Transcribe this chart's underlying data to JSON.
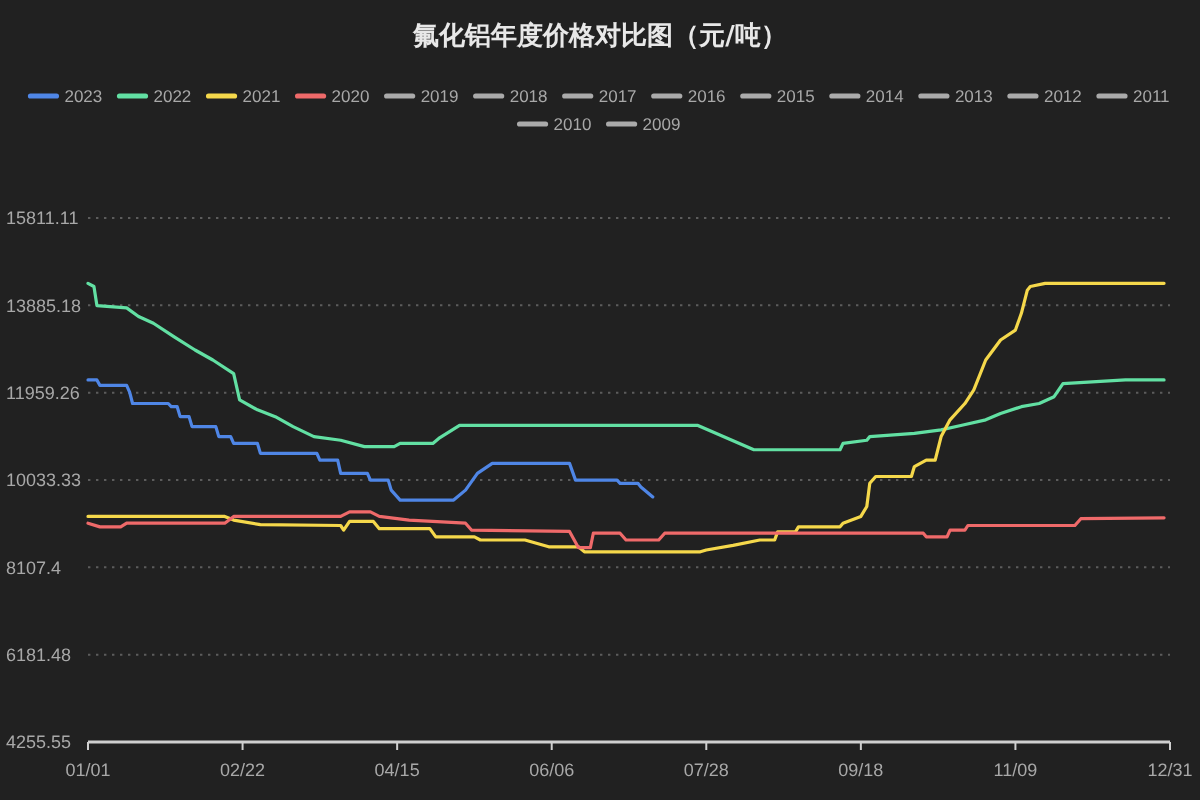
{
  "chart_data": {
    "type": "line",
    "title": "氟化铝年度价格对比图（元/吨）",
    "xlim": [
      "--01-01",
      "--12-31"
    ],
    "xticks": [
      {
        "value": "--01-01",
        "label": "01/01"
      },
      {
        "value": "--02-22",
        "label": "02/22"
      },
      {
        "value": "--04-15",
        "label": "04/15"
      },
      {
        "value": "--06-06",
        "label": "06/06"
      },
      {
        "value": "--07-28",
        "label": "07/28"
      },
      {
        "value": "--09-18",
        "label": "09/18"
      },
      {
        "value": "--11-09",
        "label": "11/09"
      },
      {
        "value": "--12-31",
        "label": "12/31"
      }
    ],
    "ylim": [
      4255.55,
      15811.11
    ],
    "yticks": [
      4255.55,
      6181.48,
      8107.4,
      10033.33,
      11959.26,
      13885.18,
      15811.11
    ],
    "grid": "y",
    "legend": "top",
    "marker": "none",
    "line_style": "solid",
    "series": [
      {
        "name": "2023",
        "color": "#4f86e6",
        "x": [
          "--01-01",
          "--01-04",
          "--01-05",
          "--01-14",
          "--01-15",
          "--01-16",
          "--01-28",
          "--01-29",
          "--01-31",
          "--02-01",
          "--02-04",
          "--02-05",
          "--02-13",
          "--02-14",
          "--02-18",
          "--02-19",
          "--02-27",
          "--02-28",
          "--03-19",
          "--03-20",
          "--03-26",
          "--03-27",
          "--04-05",
          "--04-06",
          "--04-12",
          "--04-13",
          "--04-16",
          "--05-04",
          "--05-08",
          "--05-12",
          "--05-17",
          "--06-12",
          "--06-14",
          "--06-28",
          "--06-29",
          "--07-05",
          "--07-06",
          "--07-10"
        ],
        "values": [
          12240,
          12240,
          12120,
          12120,
          11970,
          11720,
          11720,
          11650,
          11650,
          11430,
          11430,
          11210,
          11210,
          10990,
          10990,
          10840,
          10840,
          10620,
          10620,
          10470,
          10470,
          10180,
          10180,
          10030,
          10030,
          9810,
          9590,
          9590,
          9810,
          10180,
          10400,
          10400,
          10030,
          10030,
          9960,
          9960,
          9880,
          9660
        ]
      },
      {
        "name": "2022",
        "color": "#62e0a3",
        "x": [
          "--01-01",
          "--01-03",
          "--01-04",
          "--01-14",
          "--01-18",
          "--01-23",
          "--01-30",
          "--02-06",
          "--02-12",
          "--02-19",
          "--02-21",
          "--02-27",
          "--03-05",
          "--03-11",
          "--03-18",
          "--03-27",
          "--04-04",
          "--04-14",
          "--04-16",
          "--04-27",
          "--04-29",
          "--05-06",
          "--07-25",
          "--08-13",
          "--09-11",
          "--09-12",
          "--09-20",
          "--09-21",
          "--10-06",
          "--10-15",
          "--10-22",
          "--10-30",
          "--11-04",
          "--11-11",
          "--11-17",
          "--11-22",
          "--11-25",
          "--12-16",
          "--12-29"
        ],
        "values": [
          14370,
          14300,
          13880,
          13830,
          13640,
          13490,
          13190,
          12900,
          12680,
          12380,
          11800,
          11580,
          11430,
          11210,
          10990,
          10910,
          10770,
          10770,
          10840,
          10840,
          10950,
          11240,
          11240,
          10700,
          10700,
          10840,
          10910,
          10990,
          11060,
          11140,
          11240,
          11360,
          11500,
          11650,
          11720,
          11870,
          12160,
          12240,
          12240
        ]
      },
      {
        "name": "2021",
        "color": "#f5d84b",
        "x": [
          "--01-01",
          "--02-16",
          "--02-19",
          "--02-28",
          "--03-27",
          "--03-28",
          "--03-30",
          "--04-07",
          "--04-09",
          "--04-26",
          "--04-28",
          "--05-11",
          "--05-13",
          "--05-28",
          "--06-05",
          "--06-15",
          "--06-17",
          "--07-26",
          "--07-28",
          "--08-06",
          "--08-15",
          "--08-20",
          "--08-21",
          "--08-27",
          "--08-28",
          "--09-11",
          "--09-12",
          "--09-18",
          "--09-20",
          "--09-21",
          "--09-23",
          "--10-05",
          "--10-06",
          "--10-10",
          "--10-13",
          "--10-15",
          "--10-18",
          "--10-23",
          "--10-26",
          "--10-30",
          "--11-04",
          "--11-09",
          "--11-11",
          "--11-13",
          "--11-14",
          "--11-19",
          "--12-29"
        ],
        "values": [
          9230,
          9230,
          9150,
          9050,
          9030,
          8930,
          9120,
          9120,
          8960,
          8960,
          8780,
          8780,
          8710,
          8710,
          8560,
          8560,
          8450,
          8450,
          8490,
          8590,
          8710,
          8710,
          8890,
          8890,
          9000,
          9000,
          9080,
          9230,
          9450,
          9960,
          10110,
          10110,
          10330,
          10470,
          10470,
          10990,
          11360,
          11720,
          12020,
          12680,
          13120,
          13340,
          13710,
          14220,
          14300,
          14370,
          14370
        ]
      },
      {
        "name": "2020",
        "color": "#ef6a6a",
        "x": [
          "--01-01",
          "--01-05",
          "--01-12",
          "--01-14",
          "--02-16",
          "--02-19",
          "--03-27",
          "--03-30",
          "--04-06",
          "--04-09",
          "--04-19",
          "--05-08",
          "--05-10",
          "--06-12",
          "--06-15",
          "--06-19",
          "--06-20",
          "--06-29",
          "--07-01",
          "--07-12",
          "--07-14",
          "--10-09",
          "--10-10",
          "--10-17",
          "--10-18",
          "--10-23",
          "--10-24",
          "--11-29",
          "--12-01",
          "--12-29"
        ],
        "values": [
          9080,
          9000,
          9000,
          9080,
          9080,
          9230,
          9230,
          9330,
          9330,
          9230,
          9150,
          9080,
          8930,
          8900,
          8540,
          8540,
          8860,
          8860,
          8710,
          8710,
          8860,
          8860,
          8780,
          8780,
          8930,
          8930,
          9030,
          9030,
          9180,
          9200
        ]
      },
      {
        "name": "2019",
        "color": "#aaaaaa"
      },
      {
        "name": "2018",
        "color": "#aaaaaa"
      },
      {
        "name": "2017",
        "color": "#aaaaaa"
      },
      {
        "name": "2016",
        "color": "#aaaaaa"
      },
      {
        "name": "2015",
        "color": "#aaaaaa"
      },
      {
        "name": "2014",
        "color": "#aaaaaa"
      },
      {
        "name": "2013",
        "color": "#aaaaaa"
      },
      {
        "name": "2012",
        "color": "#aaaaaa"
      },
      {
        "name": "2011",
        "color": "#aaaaaa"
      },
      {
        "name": "2010",
        "color": "#aaaaaa"
      },
      {
        "name": "2009",
        "color": "#aaaaaa"
      }
    ]
  }
}
